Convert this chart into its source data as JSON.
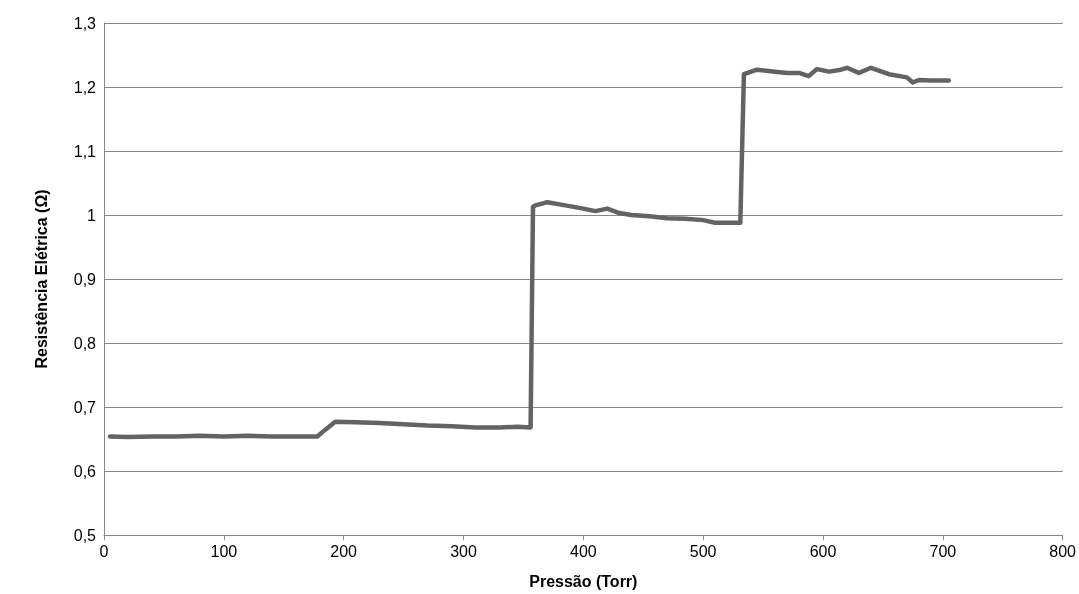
{
  "chart_data": {
    "type": "line",
    "xlabel": "Pressão (Torr)",
    "ylabel": "Resistência Elétrica (Ω)",
    "series": [
      {
        "color": "#636363",
        "x": [
          5,
          20,
          40,
          60,
          80,
          100,
          120,
          140,
          160,
          178,
          185,
          193,
          210,
          230,
          250,
          270,
          290,
          310,
          330,
          345,
          356,
          358,
          360,
          370,
          385,
          400,
          410,
          420,
          430,
          440,
          455,
          470,
          485,
          500,
          510,
          520,
          528,
          531,
          534,
          545,
          560,
          570,
          580,
          588,
          595,
          605,
          615,
          620,
          630,
          640,
          655,
          670,
          675,
          680,
          690,
          700,
          705
        ],
        "values": [
          0.654,
          0.653,
          0.654,
          0.654,
          0.655,
          0.654,
          0.655,
          0.654,
          0.654,
          0.654,
          0.665,
          0.677,
          0.676,
          0.675,
          0.673,
          0.671,
          0.67,
          0.668,
          0.668,
          0.669,
          0.668,
          1.013,
          1.015,
          1.02,
          1.015,
          1.01,
          1.006,
          1.01,
          1.003,
          1.0,
          0.998,
          0.995,
          0.994,
          0.992,
          0.988,
          0.988,
          0.988,
          0.988,
          1.22,
          1.227,
          1.224,
          1.222,
          1.222,
          1.217,
          1.228,
          1.224,
          1.227,
          1.23,
          1.222,
          1.23,
          1.22,
          1.215,
          1.207,
          1.211,
          1.21,
          1.21,
          1.21
        ]
      }
    ],
    "xlim": [
      0,
      800
    ],
    "xticks": [
      0,
      100,
      200,
      300,
      400,
      500,
      600,
      700,
      800
    ],
    "ylim": [
      0.5,
      1.3
    ],
    "yticks": [
      {
        "value": 0.5,
        "label": "0,5"
      },
      {
        "value": 0.6,
        "label": "0,6"
      },
      {
        "value": 0.7,
        "label": "0,7"
      },
      {
        "value": 0.8,
        "label": "0,8"
      },
      {
        "value": 0.9,
        "label": "0,9"
      },
      {
        "value": 1,
        "label": "1"
      },
      {
        "value": 1.1,
        "label": "1,1"
      },
      {
        "value": 1.2,
        "label": "1,2"
      },
      {
        "value": 1.3,
        "label": "1,3"
      }
    ],
    "grid": "y",
    "marker": "none",
    "line_style": "solid"
  }
}
